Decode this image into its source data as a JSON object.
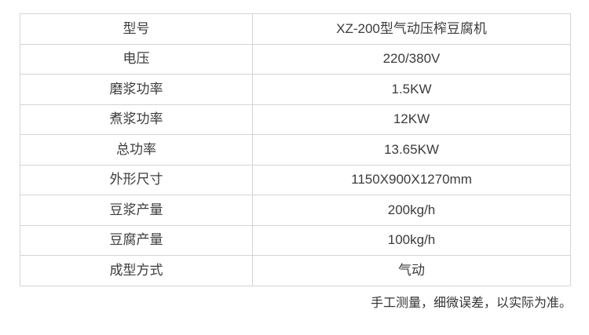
{
  "spec_table": {
    "rows": [
      {
        "label": "型号",
        "value": "XZ-200型气动压榨豆腐机"
      },
      {
        "label": "电压",
        "value": "220/380V"
      },
      {
        "label": "磨浆功率",
        "value": "1.5KW"
      },
      {
        "label": "煮浆功率",
        "value": "12KW"
      },
      {
        "label": "总功率",
        "value": "13.65KW"
      },
      {
        "label": "外形尺寸",
        "value": "1150X900X1270mm"
      },
      {
        "label": "豆浆产量",
        "value": "200kg/h"
      },
      {
        "label": "豆腐产量",
        "value": "100kg/h"
      },
      {
        "label": "成型方式",
        "value": "气动"
      }
    ],
    "border_color": "#d4d4d4",
    "text_color": "#3c3c3c"
  },
  "footer": {
    "note": "手工测量，细微误差，以实际为准。"
  }
}
